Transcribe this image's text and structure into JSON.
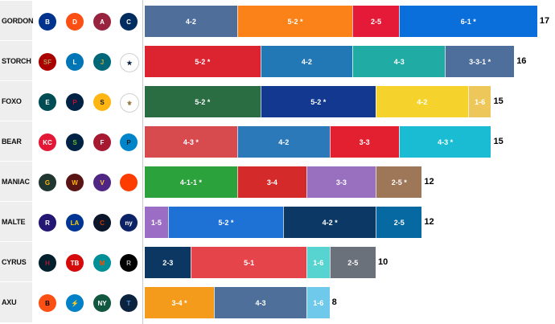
{
  "chart_data": {
    "type": "bar",
    "orientation": "horizontal",
    "stacked": true,
    "title": "",
    "xlabel": "",
    "ylabel": "",
    "xlim": [
      0,
      17
    ],
    "rows": [
      {
        "name": "GORDON",
        "total": "17",
        "teams": [
          {
            "name": "Bills",
            "icon": "bills-logo-icon",
            "color": "#00338d",
            "text_color": "#ffffff",
            "abbr": "B"
          },
          {
            "name": "Broncos",
            "icon": "broncos-logo-icon",
            "color": "#fb4f14",
            "text_color": "#ffffff",
            "abbr": "D"
          },
          {
            "name": "Cardinals",
            "icon": "cardinals-logo-icon",
            "color": "#97233f",
            "text_color": "#ffffff",
            "abbr": "A"
          },
          {
            "name": "Colts",
            "icon": "colts-logo-icon",
            "color": "#002c5f",
            "text_color": "#ffffff",
            "abbr": "C"
          }
        ],
        "segments": [
          {
            "label": "4-2",
            "value": 4,
            "color": "#4f6f9a"
          },
          {
            "label": "5-2 *",
            "value": 5,
            "color": "#fa8219"
          },
          {
            "label": "2-5",
            "value": 2,
            "color": "#e51a39"
          },
          {
            "label": "6-1 *",
            "value": 6,
            "color": "#0b6fdb"
          }
        ]
      },
      {
        "name": "STORCH",
        "total": "16",
        "teams": [
          {
            "name": "49ers",
            "icon": "49ers-logo-icon",
            "color": "#aa0000",
            "text_color": "#b3995d",
            "abbr": "SF"
          },
          {
            "name": "Lions",
            "icon": "lions-logo-icon",
            "color": "#0076b6",
            "text_color": "#ffffff",
            "abbr": "L"
          },
          {
            "name": "Jaguars",
            "icon": "jaguars-logo-icon",
            "color": "#006778",
            "text_color": "#d7a22a",
            "abbr": "J"
          },
          {
            "name": "Cowboys",
            "icon": "cowboys-logo-icon",
            "color": "#ffffff",
            "text_color": "#041e42",
            "abbr": "★"
          }
        ],
        "segments": [
          {
            "label": "5-2 *",
            "value": 5,
            "color": "#dc2430"
          },
          {
            "label": "4-2",
            "value": 4,
            "color": "#2277b5"
          },
          {
            "label": "4-3",
            "value": 4,
            "color": "#20aca4"
          },
          {
            "label": "3-3-1 *",
            "value": 3,
            "color": "#4e6e9b"
          }
        ]
      },
      {
        "name": "FOXO",
        "total": "15",
        "teams": [
          {
            "name": "Eagles",
            "icon": "eagles-logo-icon",
            "color": "#004c54",
            "text_color": "#ffffff",
            "abbr": "E"
          },
          {
            "name": "Patriots",
            "icon": "patriots-logo-icon",
            "color": "#002244",
            "text_color": "#c60c30",
            "abbr": "P"
          },
          {
            "name": "Steelers",
            "icon": "steelers-logo-icon",
            "color": "#ffb612",
            "text_color": "#101820",
            "abbr": "S"
          },
          {
            "name": "Saints",
            "icon": "saints-logo-icon",
            "color": "#ffffff",
            "text_color": "#9a7d4a",
            "abbr": "⚜"
          }
        ],
        "segments": [
          {
            "label": "5-2 *",
            "value": 5,
            "color": "#2a6d42"
          },
          {
            "label": "5-2 *",
            "value": 5,
            "color": "#12398f"
          },
          {
            "label": "4-2",
            "value": 4,
            "color": "#f5d32c"
          },
          {
            "label": "1-6",
            "value": 1,
            "color": "#edc75a"
          }
        ]
      },
      {
        "name": "BEAR",
        "total": "15",
        "teams": [
          {
            "name": "Chiefs",
            "icon": "chiefs-logo-icon",
            "color": "#e31837",
            "text_color": "#ffffff",
            "abbr": "KC"
          },
          {
            "name": "Seahawks",
            "icon": "seahawks-logo-icon",
            "color": "#002244",
            "text_color": "#69be28",
            "abbr": "S"
          },
          {
            "name": "Falcons",
            "icon": "falcons-logo-icon",
            "color": "#a71930",
            "text_color": "#ffffff",
            "abbr": "F"
          },
          {
            "name": "Panthers",
            "icon": "panthers-logo-icon",
            "color": "#0085ca",
            "text_color": "#101820",
            "abbr": "P"
          }
        ],
        "segments": [
          {
            "label": "4-3 *",
            "value": 4,
            "color": "#d74a4e"
          },
          {
            "label": "4-2",
            "value": 4,
            "color": "#2c79b9"
          },
          {
            "label": "3-3",
            "value": 3,
            "color": "#e2202f"
          },
          {
            "label": "4-3 *",
            "value": 4,
            "color": "#19bcd2"
          }
        ]
      },
      {
        "name": "MANIAC",
        "total": "12",
        "teams": [
          {
            "name": "Packers",
            "icon": "packers-logo-icon",
            "color": "#203731",
            "text_color": "#ffb612",
            "abbr": "G"
          },
          {
            "name": "Commanders",
            "icon": "commanders-logo-icon",
            "color": "#5a1414",
            "text_color": "#ffb612",
            "abbr": "W"
          },
          {
            "name": "Vikings",
            "icon": "vikings-logo-icon",
            "color": "#4f2683",
            "text_color": "#ffc62f",
            "abbr": "V"
          },
          {
            "name": "Browns",
            "icon": "browns-logo-icon",
            "color": "#ff3c00",
            "text_color": "#311d00",
            "abbr": ""
          }
        ],
        "segments": [
          {
            "label": "4-1-1 *",
            "value": 4,
            "color": "#2ba23b"
          },
          {
            "label": "3-4",
            "value": 3,
            "color": "#d42a2a"
          },
          {
            "label": "3-3",
            "value": 3,
            "color": "#9870bf"
          },
          {
            "label": "2-5 *",
            "value": 2,
            "color": "#9e7758"
          }
        ]
      },
      {
        "name": "MALTE",
        "total": "12",
        "teams": [
          {
            "name": "Ravens",
            "icon": "ravens-logo-icon",
            "color": "#241773",
            "text_color": "#ffffff",
            "abbr": "R"
          },
          {
            "name": "Rams",
            "icon": "rams-logo-icon",
            "color": "#003594",
            "text_color": "#ffd100",
            "abbr": "LA"
          },
          {
            "name": "Bears",
            "icon": "bears-logo-icon",
            "color": "#0b162a",
            "text_color": "#c83803",
            "abbr": "C"
          },
          {
            "name": "Giants",
            "icon": "giants-logo-icon",
            "color": "#0b2265",
            "text_color": "#ffffff",
            "abbr": "ny"
          }
        ],
        "segments": [
          {
            "label": "1-5",
            "value": 1,
            "color": "#9b6dc4"
          },
          {
            "label": "5-2 *",
            "value": 5,
            "color": "#1e72d6"
          },
          {
            "label": "4-2 *",
            "value": 4,
            "color": "#0c3866"
          },
          {
            "label": "2-5",
            "value": 2,
            "color": "#0769a1"
          }
        ]
      },
      {
        "name": "CYRUS",
        "total": "10",
        "teams": [
          {
            "name": "Texans",
            "icon": "texans-logo-icon",
            "color": "#03202f",
            "text_color": "#a71930",
            "abbr": "H"
          },
          {
            "name": "Buccaneers",
            "icon": "buccaneers-logo-icon",
            "color": "#d50a0a",
            "text_color": "#ffffff",
            "abbr": "TB"
          },
          {
            "name": "Dolphins",
            "icon": "dolphins-logo-icon",
            "color": "#008e97",
            "text_color": "#fc4c02",
            "abbr": "M"
          },
          {
            "name": "Raiders",
            "icon": "raiders-logo-icon",
            "color": "#000000",
            "text_color": "#a5acaf",
            "abbr": "R"
          }
        ],
        "segments": [
          {
            "label": "2-3",
            "value": 2,
            "color": "#0d3763"
          },
          {
            "label": "5-1",
            "value": 5,
            "color": "#e5454a"
          },
          {
            "label": "1-6",
            "value": 1,
            "color": "#57d4cf"
          },
          {
            "label": "2-5",
            "value": 2,
            "color": "#6a717b"
          }
        ]
      },
      {
        "name": "AXU",
        "total": "8",
        "teams": [
          {
            "name": "Bengals",
            "icon": "bengals-logo-icon",
            "color": "#fb4f14",
            "text_color": "#000000",
            "abbr": "B"
          },
          {
            "name": "Chargers",
            "icon": "chargers-logo-icon",
            "color": "#0080c6",
            "text_color": "#ffc20e",
            "abbr": "⚡"
          },
          {
            "name": "Jets",
            "icon": "jets-logo-icon",
            "color": "#125740",
            "text_color": "#ffffff",
            "abbr": "NY"
          },
          {
            "name": "Titans",
            "icon": "titans-logo-icon",
            "color": "#0c2340",
            "text_color": "#4b92db",
            "abbr": "T"
          }
        ],
        "segments": [
          {
            "label": "3-4 *",
            "value": 3,
            "color": "#f49b1b"
          },
          {
            "label": "4-3",
            "value": 4,
            "color": "#4e6f9a"
          },
          {
            "label": "1-6",
            "value": 1,
            "color": "#6ec9ea"
          }
        ]
      }
    ]
  }
}
